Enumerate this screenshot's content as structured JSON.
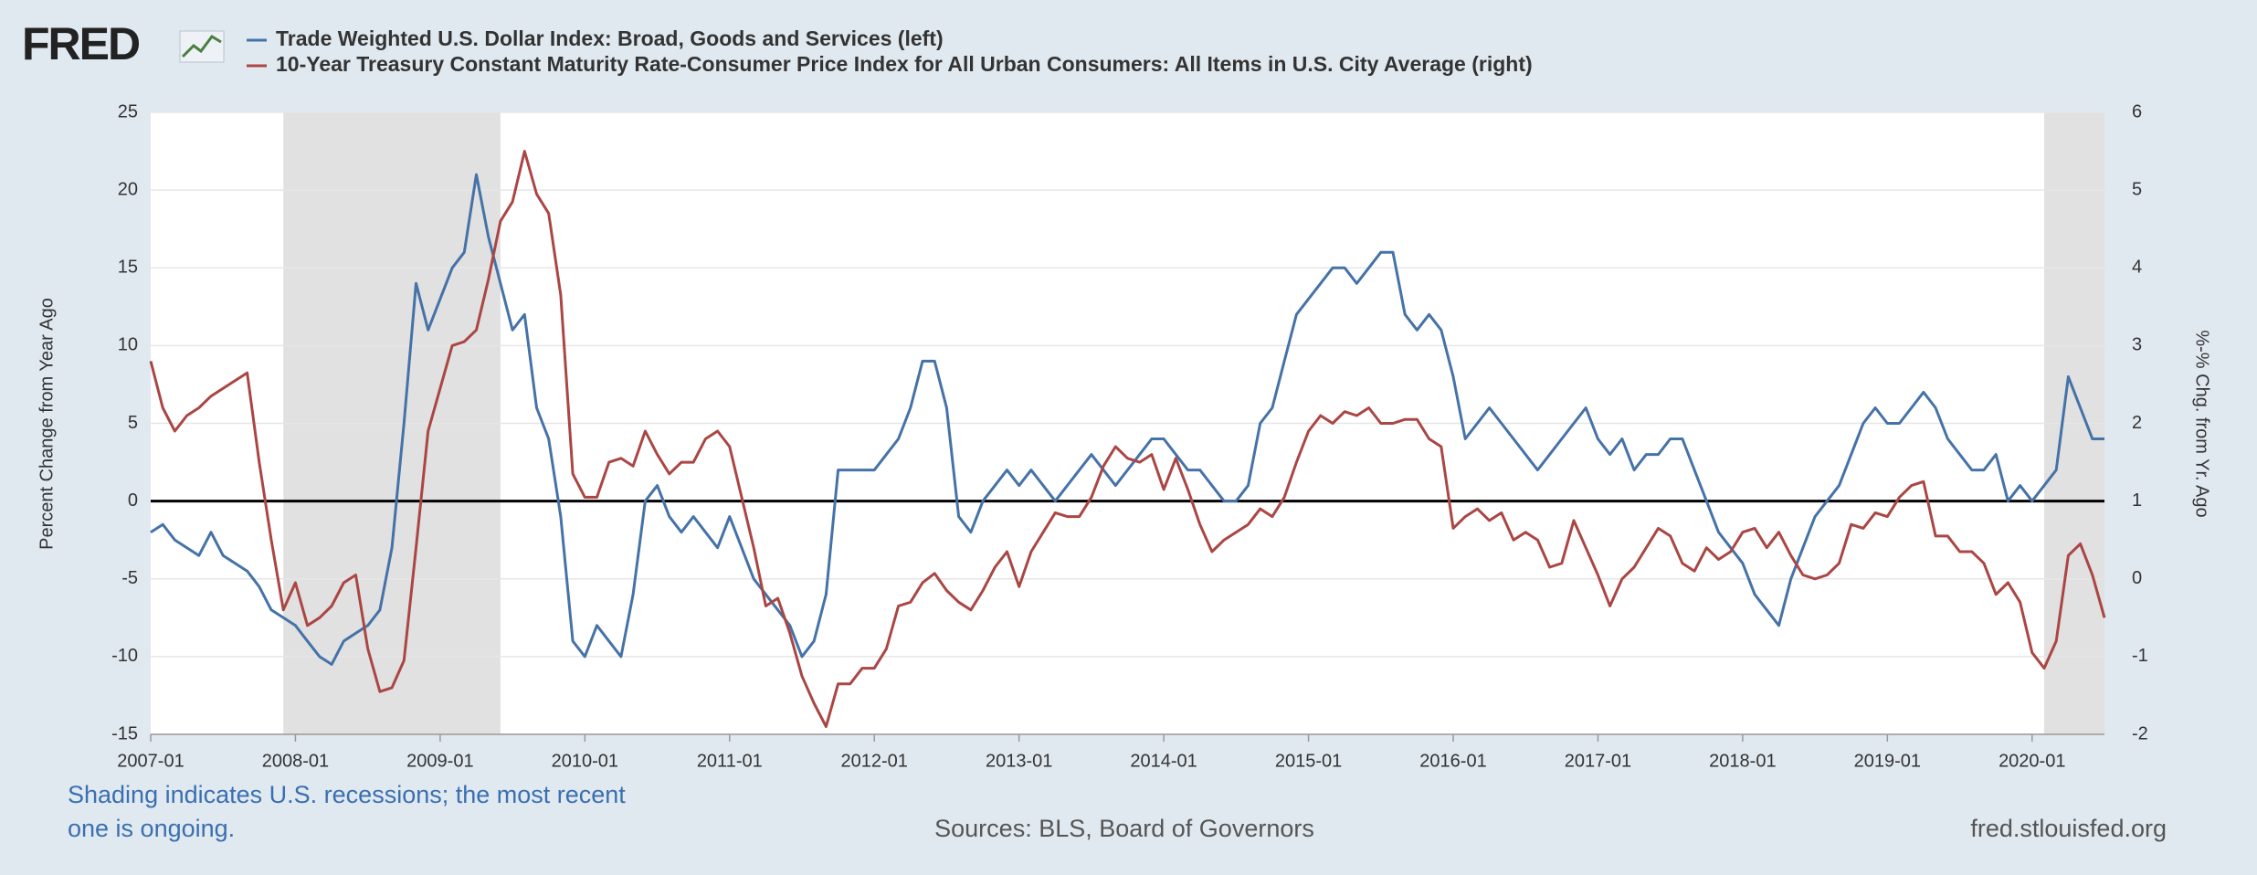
{
  "logo": "FRED",
  "chart_data": {
    "type": "line",
    "x": [
      "2007-01",
      "2007-02",
      "2007-03",
      "2007-04",
      "2007-05",
      "2007-06",
      "2007-07",
      "2007-08",
      "2007-09",
      "2007-10",
      "2007-11",
      "2007-12",
      "2008-01",
      "2008-02",
      "2008-03",
      "2008-04",
      "2008-05",
      "2008-06",
      "2008-07",
      "2008-08",
      "2008-09",
      "2008-10",
      "2008-11",
      "2008-12",
      "2009-01",
      "2009-02",
      "2009-03",
      "2009-04",
      "2009-05",
      "2009-06",
      "2009-07",
      "2009-08",
      "2009-09",
      "2009-10",
      "2009-11",
      "2009-12",
      "2010-01",
      "2010-02",
      "2010-03",
      "2010-04",
      "2010-05",
      "2010-06",
      "2010-07",
      "2010-08",
      "2010-09",
      "2010-10",
      "2010-11",
      "2010-12",
      "2011-01",
      "2011-02",
      "2011-03",
      "2011-04",
      "2011-05",
      "2011-06",
      "2011-07",
      "2011-08",
      "2011-09",
      "2011-10",
      "2011-11",
      "2011-12",
      "2012-01",
      "2012-02",
      "2012-03",
      "2012-04",
      "2012-05",
      "2012-06",
      "2012-07",
      "2012-08",
      "2012-09",
      "2012-10",
      "2012-11",
      "2012-12",
      "2013-01",
      "2013-02",
      "2013-03",
      "2013-04",
      "2013-05",
      "2013-06",
      "2013-07",
      "2013-08",
      "2013-09",
      "2013-10",
      "2013-11",
      "2013-12",
      "2014-01",
      "2014-02",
      "2014-03",
      "2014-04",
      "2014-05",
      "2014-06",
      "2014-07",
      "2014-08",
      "2014-09",
      "2014-10",
      "2014-11",
      "2014-12",
      "2015-01",
      "2015-02",
      "2015-03",
      "2015-04",
      "2015-05",
      "2015-06",
      "2015-07",
      "2015-08",
      "2015-09",
      "2015-10",
      "2015-11",
      "2015-12",
      "2016-01",
      "2016-02",
      "2016-03",
      "2016-04",
      "2016-05",
      "2016-06",
      "2016-07",
      "2016-08",
      "2016-09",
      "2016-10",
      "2016-11",
      "2016-12",
      "2017-01",
      "2017-02",
      "2017-03",
      "2017-04",
      "2017-05",
      "2017-06",
      "2017-07",
      "2017-08",
      "2017-09",
      "2017-10",
      "2017-11",
      "2017-12",
      "2018-01",
      "2018-02",
      "2018-03",
      "2018-04",
      "2018-05",
      "2018-06",
      "2018-07",
      "2018-08",
      "2018-09",
      "2018-10",
      "2018-11",
      "2018-12",
      "2019-01",
      "2019-02",
      "2019-03",
      "2019-04",
      "2019-05",
      "2019-06",
      "2019-07",
      "2019-08",
      "2019-09",
      "2019-10",
      "2019-11",
      "2019-12",
      "2020-01",
      "2020-02",
      "2020-03",
      "2020-04",
      "2020-05",
      "2020-06",
      "2020-07"
    ],
    "series": [
      {
        "name": "Trade Weighted U.S. Dollar Index: Broad, Goods and Services (left)",
        "color": "#4572a7",
        "axis": "y",
        "values": [
          -2,
          -1.5,
          -2.5,
          -3,
          -3.5,
          -2,
          -3.5,
          -4,
          -4.5,
          -5.5,
          -7,
          -7.5,
          -8,
          -9,
          -10,
          -10.5,
          -9,
          -8.5,
          -8,
          -7,
          -3,
          5,
          14,
          11,
          13,
          15,
          16,
          21,
          17,
          14,
          11,
          12,
          6,
          4,
          -1,
          -9,
          -10,
          -8,
          -9,
          -10,
          -6,
          0,
          1,
          -1,
          -2,
          -1,
          -2,
          -3,
          -1,
          -3,
          -5,
          -6,
          -7,
          -8,
          -10,
          -9,
          -6,
          2,
          2,
          2,
          2,
          3,
          4,
          6,
          9,
          9,
          6,
          -1,
          -2,
          0,
          1,
          2,
          1,
          2,
          1,
          0,
          1,
          2,
          3,
          2,
          1,
          2,
          3,
          4,
          4,
          3,
          2,
          2,
          1,
          0,
          0,
          1,
          5,
          6,
          9,
          12,
          13,
          14,
          15,
          15,
          14,
          15,
          16,
          16,
          12,
          11,
          12,
          11,
          8,
          4,
          5,
          6,
          5,
          4,
          3,
          2,
          3,
          4,
          5,
          6,
          4,
          3,
          4,
          2,
          3,
          3,
          4,
          4,
          2,
          0,
          -2,
          -3,
          -4,
          -6,
          -7,
          -8,
          -5,
          -3,
          -1,
          0,
          1,
          3,
          5,
          6,
          5,
          5,
          6,
          7,
          6,
          4,
          3,
          2,
          2,
          3,
          0,
          1,
          0,
          1,
          2,
          8,
          6,
          4,
          4
        ]
      },
      {
        "name": "10-Year Treasury Constant Maturity Rate-Consumer Price Index for All Urban Consumers: All Items in U.S. City Average (right)",
        "color": "#aa4643",
        "axis": "y2",
        "values": [
          2.8,
          2.2,
          1.9,
          2.1,
          2.2,
          2.35,
          2.45,
          2.55,
          2.65,
          1.5,
          0.5,
          -0.4,
          -0.05,
          -0.6,
          -0.5,
          -0.35,
          -0.05,
          0.05,
          -0.9,
          -1.45,
          -1.4,
          -1.05,
          0.4,
          1.9,
          2.45,
          3.0,
          3.05,
          3.2,
          3.85,
          4.6,
          4.85,
          5.5,
          4.95,
          4.7,
          3.65,
          1.35,
          1.05,
          1.05,
          1.5,
          1.55,
          1.45,
          1.9,
          1.6,
          1.35,
          1.5,
          1.5,
          1.8,
          1.9,
          1.7,
          1.05,
          0.4,
          -0.35,
          -0.25,
          -0.7,
          -1.25,
          -1.6,
          -1.9,
          -1.35,
          -1.35,
          -1.15,
          -1.15,
          -0.9,
          -0.35,
          -0.3,
          -0.05,
          0.07,
          -0.15,
          -0.3,
          -0.4,
          -0.15,
          0.15,
          0.35,
          -0.1,
          0.35,
          0.6,
          0.85,
          0.8,
          0.8,
          1.05,
          1.45,
          1.7,
          1.55,
          1.5,
          1.6,
          1.15,
          1.55,
          1.15,
          0.7,
          0.35,
          0.5,
          0.6,
          0.7,
          0.9,
          0.8,
          1.05,
          1.5,
          1.9,
          2.1,
          2.0,
          2.15,
          2.1,
          2.2,
          2.0,
          2.0,
          2.05,
          2.05,
          1.8,
          1.7,
          0.65,
          0.8,
          0.9,
          0.75,
          0.85,
          0.5,
          0.6,
          0.5,
          0.15,
          0.2,
          0.75,
          0.4,
          0.05,
          -0.35,
          0,
          0.15,
          0.4,
          0.65,
          0.55,
          0.2,
          0.1,
          0.4,
          0.25,
          0.35,
          0.6,
          0.65,
          0.4,
          0.6,
          0.3,
          0.05,
          0,
          0.05,
          0.2,
          0.7,
          0.65,
          0.85,
          0.8,
          1.05,
          1.2,
          1.25,
          0.55,
          0.55,
          0.35,
          0.35,
          0.2,
          -0.2,
          -0.05,
          -0.3,
          -0.95,
          -1.15,
          -0.8,
          0.3,
          0.45,
          0.05,
          -0.5
        ]
      }
    ],
    "xlim": [
      "2007-01",
      "2020-07"
    ],
    "xticks": [
      "2007-01",
      "2008-01",
      "2009-01",
      "2010-01",
      "2011-01",
      "2012-01",
      "2013-01",
      "2014-01",
      "2015-01",
      "2016-01",
      "2017-01",
      "2018-01",
      "2019-01",
      "2020-01"
    ],
    "ylim": [
      -15,
      25
    ],
    "yticks": [
      -15,
      -10,
      -5,
      0,
      5,
      10,
      15,
      20,
      25
    ],
    "y2lim": [
      -2,
      6
    ],
    "y2ticks": [
      -2,
      -1,
      0,
      1,
      2,
      3,
      4,
      5,
      6
    ],
    "ylabel": "Percent Change from Year Ago",
    "y2label": "%-% Chg. from Yr. Ago",
    "reference_line": 0,
    "grid": true,
    "shading": [
      [
        "2007-12",
        "2009-06"
      ],
      [
        "2020-02",
        "2020-07"
      ]
    ],
    "note": "Shading indicates U.S. recessions; the most recent one is ongoing.",
    "source": "Sources: BLS, Board of Governors",
    "site": "fred.stlouisfed.org"
  }
}
